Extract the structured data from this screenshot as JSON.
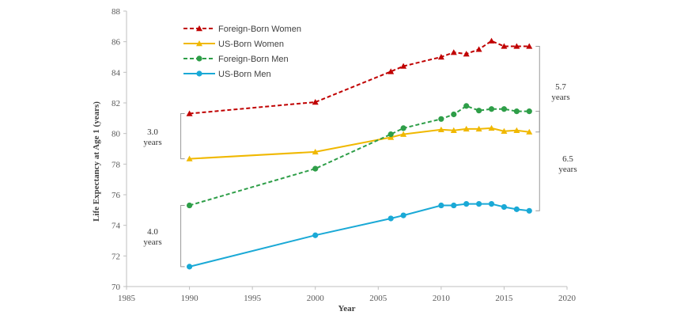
{
  "chart_data": {
    "type": "line",
    "title": "",
    "xlabel": "Year",
    "ylabel": "Life Expectancy at Age 1 (years)",
    "xlim": [
      1985,
      2020
    ],
    "ylim": [
      70,
      88
    ],
    "xticks": [
      1985,
      1990,
      1995,
      2000,
      2005,
      2010,
      2015,
      2020
    ],
    "yticks": [
      70,
      72,
      74,
      76,
      78,
      80,
      82,
      84,
      86,
      88
    ],
    "grid": false,
    "legend_position": "top-left",
    "series": [
      {
        "name": "Foreign-Born Women",
        "color": "#c00000",
        "marker": "triangle",
        "dash": true,
        "x": [
          1990,
          2000,
          2006,
          2007,
          2010,
          2011,
          2012,
          2013,
          2014,
          2015,
          2016,
          2017
        ],
        "y": [
          81.3,
          82.05,
          84.05,
          84.4,
          85.0,
          85.3,
          85.2,
          85.5,
          86.05,
          85.7,
          85.7,
          85.7
        ]
      },
      {
        "name": "US-Born Women",
        "color": "#f0b800",
        "marker": "triangle",
        "dash": false,
        "x": [
          1990,
          2000,
          2006,
          2007,
          2010,
          2011,
          2012,
          2013,
          2014,
          2015,
          2016,
          2017
        ],
        "y": [
          78.35,
          78.8,
          79.75,
          79.95,
          80.25,
          80.2,
          80.3,
          80.3,
          80.35,
          80.15,
          80.2,
          80.1
        ]
      },
      {
        "name": "Foreign-Born Men",
        "color": "#2e9e48",
        "marker": "circle",
        "dash": true,
        "x": [
          1990,
          2000,
          2006,
          2007,
          2010,
          2011,
          2012,
          2013,
          2014,
          2015,
          2016,
          2017
        ],
        "y": [
          75.3,
          77.7,
          79.95,
          80.35,
          80.95,
          81.25,
          81.8,
          81.5,
          81.6,
          81.6,
          81.45,
          81.45
        ]
      },
      {
        "name": "US-Born Men",
        "color": "#1aa9d6",
        "marker": "circle",
        "dash": false,
        "x": [
          1990,
          2000,
          2006,
          2007,
          2010,
          2011,
          2012,
          2013,
          2014,
          2015,
          2016,
          2017
        ],
        "y": [
          71.3,
          73.35,
          74.45,
          74.65,
          75.3,
          75.3,
          75.4,
          75.4,
          75.4,
          75.2,
          75.05,
          74.95
        ]
      }
    ],
    "annotations": [
      {
        "id": "gap-women-1990",
        "line1": "3.0",
        "line2": "years"
      },
      {
        "id": "gap-men-1990",
        "line1": "4.0",
        "line2": "years"
      },
      {
        "id": "gap-women-2017",
        "line1": "5.7",
        "line2": "years"
      },
      {
        "id": "gap-men-2017",
        "line1": "6.5",
        "line2": "years"
      }
    ]
  }
}
